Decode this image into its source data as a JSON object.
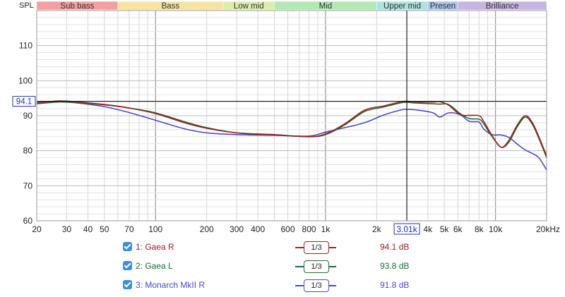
{
  "chart_data": {
    "type": "line",
    "ylabel": "SPL",
    "xscale": "log",
    "xlim": [
      20,
      20000
    ],
    "ylim": [
      60,
      120
    ],
    "grid": true,
    "yticks": [
      60,
      70,
      80,
      90,
      100,
      110
    ],
    "xticks": [
      {
        "value": 20,
        "label": "20"
      },
      {
        "value": 30,
        "label": "30"
      },
      {
        "value": 40,
        "label": "40"
      },
      {
        "value": 50,
        "label": "50"
      },
      {
        "value": 70,
        "label": "70"
      },
      {
        "value": 100,
        "label": "100"
      },
      {
        "value": 200,
        "label": "200"
      },
      {
        "value": 300,
        "label": "300"
      },
      {
        "value": 400,
        "label": "400"
      },
      {
        "value": 600,
        "label": "600"
      },
      {
        "value": 800,
        "label": "800"
      },
      {
        "value": 1000,
        "label": "1k"
      },
      {
        "value": 2000,
        "label": "2k"
      },
      {
        "value": 4000,
        "label": "4k"
      },
      {
        "value": 5000,
        "label": "5k"
      },
      {
        "value": 6000,
        "label": "6k"
      },
      {
        "value": 8000,
        "label": "8k"
      },
      {
        "value": 10000,
        "label": "10k"
      },
      {
        "value": 20000,
        "label": "20kHz"
      }
    ],
    "bands": [
      {
        "label": "Sub bass",
        "from": 20,
        "to": 60,
        "color": "#f4a0a0"
      },
      {
        "label": "Bass",
        "from": 60,
        "to": 250,
        "color": "#f6e3a2"
      },
      {
        "label": "Low mid",
        "from": 250,
        "to": 500,
        "color": "#dcedaa"
      },
      {
        "label": "Mid",
        "from": 500,
        "to": 2000,
        "color": "#b1e8b4"
      },
      {
        "label": "Upper mid",
        "from": 2000,
        "to": 4000,
        "color": "#a8e3e0"
      },
      {
        "label": "Presen",
        "from": 4000,
        "to": 6000,
        "color": "#a9c4ea"
      },
      {
        "label": "Brilliance",
        "from": 6000,
        "to": 20000,
        "color": "#c5b5e0"
      }
    ],
    "cursor": {
      "x": 3010,
      "x_label": "3.01k",
      "y": 94.1,
      "y_label": "94.1"
    },
    "series": [
      {
        "name": "1: Gaea R",
        "color": "#a32020",
        "smoothing": "1/3",
        "value_label": "94.1 dB",
        "x": [
          20,
          27,
          35,
          50,
          70,
          100,
          150,
          200,
          300,
          500,
          800,
          1000,
          1300,
          1700,
          2200,
          2800,
          3010,
          3500,
          4300,
          4700,
          5300,
          6200,
          7000,
          8000,
          8500,
          9500,
          10800,
          12000,
          13500,
          15000,
          16500,
          18000,
          20000
        ],
        "y": [
          93.6,
          94.2,
          93.9,
          93.2,
          92.2,
          90.6,
          87.9,
          86.4,
          85.1,
          84.6,
          84.0,
          84.8,
          87.7,
          91.6,
          92.8,
          94.0,
          94.1,
          93.9,
          93.9,
          94.0,
          93.0,
          90.3,
          90.1,
          90.0,
          88.5,
          84.5,
          81.0,
          83.0,
          87.5,
          90.0,
          88.0,
          84.0,
          78.5
        ]
      },
      {
        "name": "2: Gaea L",
        "color": "#1c6b34",
        "smoothing": "1/3",
        "value_label": "93.8 dB",
        "x": [
          20,
          27,
          35,
          50,
          70,
          100,
          150,
          200,
          300,
          500,
          800,
          1000,
          1300,
          1700,
          2200,
          2800,
          3010,
          3500,
          4300,
          4700,
          5300,
          6200,
          7000,
          8000,
          8500,
          9500,
          10800,
          12000,
          13500,
          15000,
          16500,
          18000,
          20000
        ],
        "y": [
          93.4,
          93.9,
          93.7,
          93.1,
          92.2,
          90.8,
          88.2,
          86.6,
          85.1,
          84.5,
          84.0,
          84.6,
          87.4,
          91.2,
          92.5,
          93.7,
          93.8,
          93.6,
          93.4,
          93.3,
          93.2,
          90.6,
          89.2,
          89.0,
          87.8,
          84.2,
          81.0,
          82.5,
          87.0,
          89.6,
          87.5,
          83.5,
          78.0
        ]
      },
      {
        "name": "3: Monarch MkII R",
        "color": "#4a4ac8",
        "smoothing": "1/3",
        "value_label": "91.8 dB",
        "x": [
          20,
          27,
          35,
          50,
          70,
          100,
          150,
          200,
          300,
          500,
          800,
          1000,
          1300,
          1700,
          2200,
          2800,
          3010,
          3500,
          4300,
          4700,
          5300,
          6200,
          7000,
          8000,
          8500,
          9500,
          10800,
          12000,
          13500,
          15000,
          16500,
          18000,
          20000
        ],
        "y": [
          93.8,
          94.0,
          93.6,
          92.6,
          90.9,
          88.7,
          86.2,
          85.1,
          84.6,
          84.4,
          84.2,
          85.3,
          86.6,
          88.0,
          90.2,
          91.7,
          91.8,
          91.6,
          90.8,
          89.6,
          90.8,
          90.3,
          88.4,
          88.2,
          86.3,
          84.6,
          84.5,
          83.8,
          81.8,
          80.2,
          79.2,
          78.0,
          74.5
        ]
      }
    ]
  }
}
